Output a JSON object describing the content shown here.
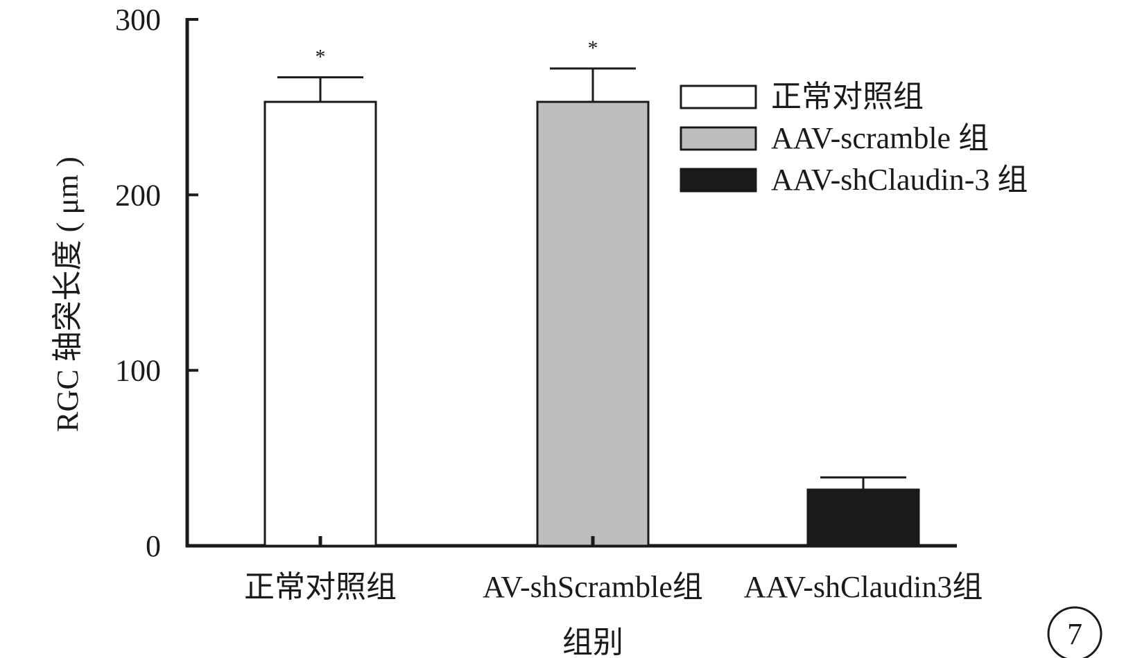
{
  "chart_data": {
    "type": "bar",
    "categories": [
      "正常对照组",
      "AV-shScramble组",
      "AAV-shClaudin3组"
    ],
    "series": [
      {
        "values": [
          253,
          253,
          32
        ],
        "errors": [
          14,
          19,
          7
        ]
      }
    ],
    "bar_colors": [
      "#ffffff",
      "#bdbdbd",
      "#1a1a1a"
    ],
    "significance": [
      "*",
      "*",
      ""
    ],
    "xlabel": "组别",
    "ylabel": "RGC 轴突长度 ( μm )",
    "ylim": [
      0,
      300
    ],
    "yticks": [
      0,
      100,
      200,
      300
    ],
    "grid": false,
    "legend": {
      "position": "top-right",
      "entries": [
        {
          "label": "正常对照组",
          "color": "#ffffff"
        },
        {
          "label": "AAV-scramble 组",
          "color": "#bdbdbd"
        },
        {
          "label": "AAV-shClaudin-3 组",
          "color": "#1a1a1a"
        }
      ]
    }
  },
  "figure_number": "7"
}
